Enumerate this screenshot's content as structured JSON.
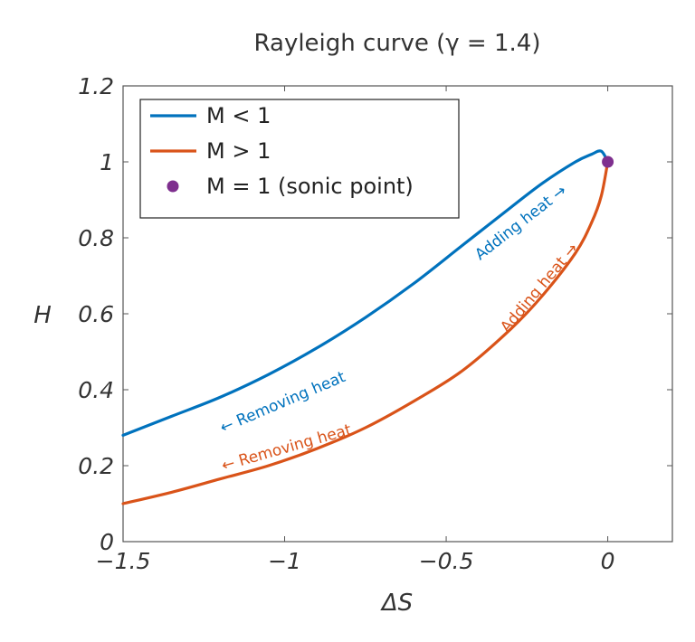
{
  "colors": {
    "subsonic": "#0072bd",
    "supersonic": "#d95319",
    "sonic": "#7e2f8e"
  },
  "chart_data": {
    "type": "line",
    "title": "Rayleigh curve (γ = 1.4)",
    "xlabel": "ΔS",
    "ylabel": "H",
    "xlim": [
      -1.5,
      0.2
    ],
    "ylim": [
      0,
      1.2
    ],
    "xticks": [
      -1.5,
      -1,
      -0.5,
      0
    ],
    "xtick_labels": [
      "−1.5",
      "−1",
      "−0.5",
      "0"
    ],
    "yticks": [
      0,
      0.2,
      0.4,
      0.6,
      0.8,
      1,
      1.2
    ],
    "ytick_labels": [
      "0",
      "0.2",
      "0.4",
      "0.6",
      "0.8",
      "1",
      "1.2"
    ],
    "grid": false,
    "legend_position": "top-left",
    "series": [
      {
        "name": "M < 1",
        "x": [
          -1.5,
          -1.35,
          -1.2,
          -1.05,
          -0.9,
          -0.75,
          -0.6,
          -0.45,
          -0.3,
          -0.2,
          -0.1,
          -0.05,
          -0.02,
          0
        ],
        "y": [
          0.28,
          0.33,
          0.38,
          0.44,
          0.51,
          0.59,
          0.68,
          0.78,
          0.88,
          0.945,
          1.0,
          1.02,
          1.028,
          1.0
        ]
      },
      {
        "name": "M > 1",
        "x": [
          -1.5,
          -1.35,
          -1.2,
          -1.05,
          -0.9,
          -0.75,
          -0.6,
          -0.45,
          -0.3,
          -0.2,
          -0.1,
          -0.05,
          -0.02,
          0
        ],
        "y": [
          0.1,
          0.13,
          0.165,
          0.2,
          0.245,
          0.3,
          0.37,
          0.45,
          0.56,
          0.65,
          0.76,
          0.84,
          0.91,
          1.0
        ]
      }
    ],
    "points": [
      {
        "name": "M = 1 (sonic point)",
        "x": 0,
        "y": 1
      }
    ],
    "legend": [
      {
        "label": "M < 1",
        "kind": "line",
        "color": "#0072bd"
      },
      {
        "label": "M > 1",
        "kind": "line",
        "color": "#d95319"
      },
      {
        "label": "M = 1 (sonic point)",
        "kind": "marker",
        "color": "#7e2f8e"
      }
    ],
    "annotations": [
      {
        "text": "Adding heat →",
        "x": -0.26,
        "y": 0.83,
        "angle": -38,
        "color": "#0072bd"
      },
      {
        "text": "Removing heat",
        "x": -1.0,
        "y": 0.355,
        "angle": -23,
        "color": "#0072bd",
        "arrow": "←"
      },
      {
        "text": "Adding heat →",
        "x": -0.2,
        "y": 0.66,
        "angle": -50,
        "color": "#d95319"
      },
      {
        "text": "Removing heat",
        "x": -0.99,
        "y": 0.235,
        "angle": -16,
        "color": "#d95319",
        "arrow": "←"
      }
    ]
  }
}
